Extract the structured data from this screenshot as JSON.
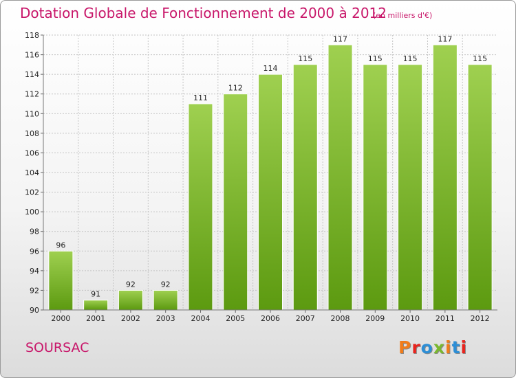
{
  "header": {
    "title": "Dotation Globale de Fonctionnement de 2000 à 2012",
    "unit_note": "(en milliers d'€)"
  },
  "footer": {
    "commune": "SOURSAC",
    "brand": "Proxiti",
    "brand_colors": [
      "#f07c1a",
      "#e8241e",
      "#2c8ed6",
      "#7ab82f",
      "#f07c1a",
      "#2c8ed6",
      "#e8241e"
    ]
  },
  "colors": {
    "title": "#c8176a",
    "bar_top": "#9fd050",
    "bar_bottom": "#5c9a10",
    "grid": "#c4c4c4"
  },
  "chart_data": {
    "type": "bar",
    "categories": [
      "2000",
      "2001",
      "2002",
      "2003",
      "2004",
      "2005",
      "2006",
      "2007",
      "2008",
      "2009",
      "2010",
      "2011",
      "2012"
    ],
    "values": [
      96,
      91,
      92,
      92,
      111,
      112,
      114,
      115,
      117,
      115,
      115,
      117,
      115
    ],
    "ylim": [
      90,
      118
    ],
    "yticks": [
      90,
      92,
      94,
      96,
      98,
      100,
      102,
      104,
      106,
      108,
      110,
      112,
      114,
      116,
      118
    ],
    "grid": true,
    "data_labels": true
  }
}
